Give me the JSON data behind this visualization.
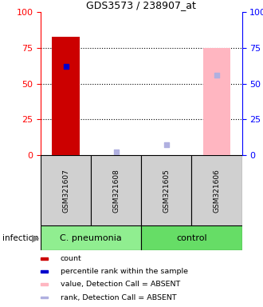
{
  "title": "GDS3573 / 238907_at",
  "samples": [
    "GSM321607",
    "GSM321608",
    "GSM321605",
    "GSM321606"
  ],
  "count_values": [
    83,
    0,
    0,
    0
  ],
  "rank_values": [
    62,
    0,
    0,
    0
  ],
  "absent_value_values": [
    0,
    0,
    0,
    75
  ],
  "absent_rank_values": [
    0,
    2,
    7,
    56
  ],
  "ylim": [
    0,
    100
  ],
  "y_ticks": [
    0,
    25,
    50,
    75,
    100
  ],
  "count_color": "#cc0000",
  "rank_color": "#0000cc",
  "absent_value_color": "#ffb6c1",
  "absent_rank_color": "#b0b0e0",
  "sample_box_color": "#d0d0d0",
  "groups_info": [
    {
      "label": "C. pneumonia",
      "start": 0,
      "end": 2,
      "color": "#90ee90"
    },
    {
      "label": "control",
      "start": 2,
      "end": 4,
      "color": "#66dd66"
    }
  ],
  "legend_items": [
    {
      "label": "count",
      "color": "#cc0000"
    },
    {
      "label": "percentile rank within the sample",
      "color": "#0000cc"
    },
    {
      "label": "value, Detection Call = ABSENT",
      "color": "#ffb6c1"
    },
    {
      "label": "rank, Detection Call = ABSENT",
      "color": "#b0b0e0"
    }
  ]
}
